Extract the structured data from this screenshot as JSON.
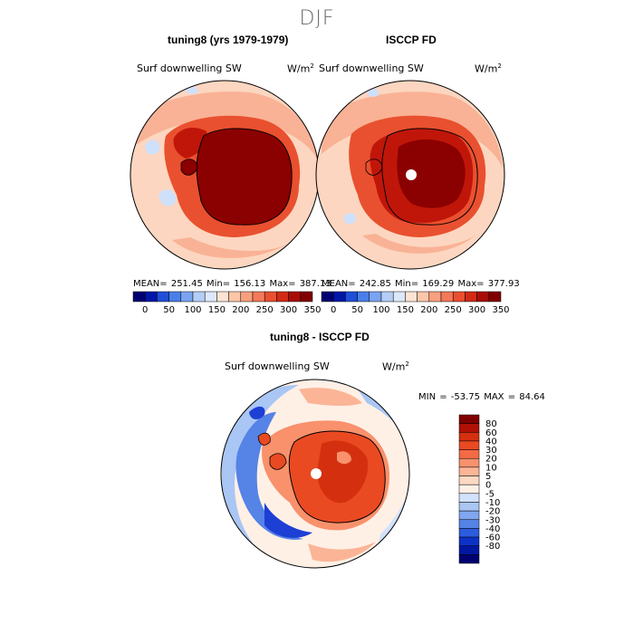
{
  "figure": {
    "title": "DJF"
  },
  "panels": [
    {
      "title": "tuning8 (yrs 1979-1979)",
      "field": "Surf downwelling SW",
      "units": "W/m",
      "stats": "MEAN= 251.45   Min= 156.13   Max= 387.13"
    },
    {
      "title": "ISCCP FD",
      "field": "Surf downwelling SW",
      "units": "W/m",
      "stats": "MEAN= 242.85   Min= 169.29   Max= 377.93"
    },
    {
      "title": "tuning8 - ISCCP FD",
      "field": "Surf downwelling SW",
      "units": "W/m",
      "stats": "MIN = -53.75  MAX =  84.64"
    }
  ],
  "colorbar_top": {
    "labels": [
      "0",
      "50",
      "100",
      "150",
      "200",
      "250",
      "300",
      "350"
    ],
    "colors": [
      "#000070",
      "#0016a8",
      "#1f4fd8",
      "#4a7fe8",
      "#7aa4f0",
      "#b4cdf6",
      "#dde8fb",
      "#fde3d3",
      "#fcc6aa",
      "#f9a07e",
      "#f4795a",
      "#e9502f",
      "#d12a14",
      "#a80d05",
      "#800000"
    ]
  },
  "colorbar_diff": {
    "labels": [
      "80",
      "60",
      "40",
      "30",
      "20",
      "10",
      "5",
      "0",
      "-5",
      "-10",
      "-20",
      "-30",
      "-40",
      "-60",
      "-80"
    ],
    "colors": [
      "#800000",
      "#b01005",
      "#d4300f",
      "#ea4a22",
      "#f46a44",
      "#f8916c",
      "#fbb596",
      "#fdd8c2",
      "#fff0e6",
      "#d2e2fb",
      "#a9c6f4",
      "#7fa6ef",
      "#5583e6",
      "#2d5cde",
      "#0c32c8",
      "#0018a0",
      "#000070"
    ]
  },
  "map_colors": {
    "ocean_light": "#fcd6c0",
    "ocean_mid": "#f9b295",
    "land_dark": "#8b0000",
    "land_red": "#c0160a",
    "blue_light": "#cfe0fa",
    "blue_mid": "#6b94ee",
    "blue_dark": "#1d3fd4"
  }
}
